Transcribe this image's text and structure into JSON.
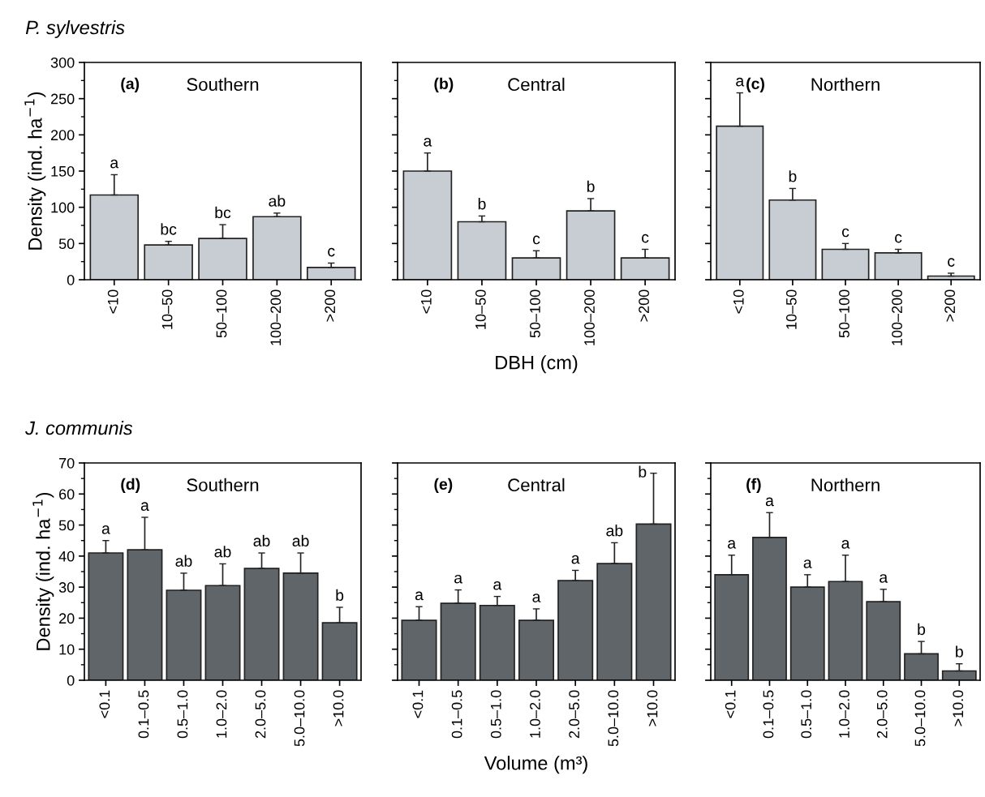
{
  "chart_data": [
    {
      "type": "bar",
      "title": "Southern",
      "ylabel": "Density (ind. ha$^{−1}$)",
      "categories": [
        "<10",
        "10–50",
        "50–100",
        "100–200",
        ">200"
      ],
      "color": "#c8ccd3",
      "values": [
        117,
        48,
        57,
        87,
        17
      ],
      "errors": [
        [
          117,
          145
        ],
        [
          48,
          53
        ],
        [
          57,
          76
        ],
        [
          87,
          92
        ],
        [
          17,
          23
        ]
      ],
      "ylim": [
        0,
        300
      ],
      "yticks": [
        0,
        50,
        100,
        150,
        200,
        250,
        300
      ],
      "annotations": [
        "(a)",
        "P. sylvestris",
        {
          "text": "a",
          "x": "<10",
          "y": 145
        },
        {
          "text": "bc",
          "x": "10–50",
          "y": 53
        },
        {
          "text": "bc",
          "x": "50–100",
          "y": 76
        },
        {
          "text": "ab",
          "x": "100–200",
          "y": 92
        },
        {
          "text": "c",
          "x": ">200",
          "y": 23
        }
      ]
    },
    {
      "type": "bar",
      "title": "Central",
      "xlabel": "DBH (cm)",
      "categories": [
        "<10",
        "10–50",
        "50–100",
        "100–200",
        ">200"
      ],
      "color": "#c8ccd3",
      "values": [
        150,
        80,
        30,
        95,
        30
      ],
      "errors": [
        [
          150,
          175
        ],
        [
          80,
          88
        ],
        [
          30,
          40
        ],
        [
          95,
          112
        ],
        [
          30,
          42
        ]
      ],
      "ylim": [
        0,
        300
      ],
      "yticks": [
        0,
        50,
        100,
        150,
        200,
        250,
        300
      ],
      "tick_labels": "x",
      "annotations": [
        "(b)",
        {
          "text": "a",
          "x": "<10",
          "y": 175
        },
        {
          "text": "b",
          "x": "10–50",
          "y": 88
        },
        {
          "text": "c",
          "x": "50–100",
          "y": 40
        },
        {
          "text": "b",
          "x": "100–200",
          "y": 112
        },
        {
          "text": "c",
          "x": ">200",
          "y": 42
        }
      ]
    },
    {
      "type": "bar",
      "title": "Northern",
      "categories": [
        "<10",
        "10–50",
        "50–100",
        "100–200",
        ">200"
      ],
      "color": "#c8ccd3",
      "values": [
        212,
        110,
        42,
        37,
        5
      ],
      "errors": [
        [
          212,
          258
        ],
        [
          110,
          126
        ],
        [
          42,
          50
        ],
        [
          37,
          42
        ],
        [
          5,
          9
        ]
      ],
      "ylim": [
        0,
        300
      ],
      "yticks": [
        0,
        50,
        100,
        150,
        200,
        250,
        300
      ],
      "tick_labels": "x",
      "annotations": [
        "(c)",
        {
          "text": "a",
          "x": "<10",
          "y": 258
        },
        {
          "text": "b",
          "x": "10–50",
          "y": 126
        },
        {
          "text": "c",
          "x": "50–100",
          "y": 50
        },
        {
          "text": "c",
          "x": "100–200",
          "y": 42
        },
        {
          "text": "c",
          "x": ">200",
          "y": 9
        }
      ]
    },
    {
      "type": "bar",
      "title": "Southern",
      "ylabel": "Density (ind. ha$^{−1}$)",
      "categories": [
        "<0.1",
        "0.1–0.5",
        "0.5–1.0",
        "1.0–2.0",
        "2.0–5.0",
        "5.0–10.0",
        ">10.0"
      ],
      "color": "#5f6569",
      "values": [
        41,
        42,
        29,
        30.5,
        36,
        34.5,
        18.5
      ],
      "errors": [
        [
          41,
          45
        ],
        [
          42,
          52.5
        ],
        [
          29,
          34.5
        ],
        [
          30.5,
          37.5
        ],
        [
          36,
          41
        ],
        [
          34.5,
          41
        ],
        [
          18.5,
          23.5
        ]
      ],
      "ylim": [
        0,
        70
      ],
      "yticks": [
        0,
        10,
        20,
        30,
        40,
        50,
        60,
        70
      ],
      "annotations": [
        "(d)",
        "J. communis",
        {
          "text": "a",
          "x": "<0.1",
          "y": 45
        },
        {
          "text": "a",
          "x": "0.1–0.5",
          "y": 52.5
        },
        {
          "text": "ab",
          "x": "0.5–1.0",
          "y": 34.5
        },
        {
          "text": "ab",
          "x": "1.0–2.0",
          "y": 37.5
        },
        {
          "text": "ab",
          "x": "2.0–5.0",
          "y": 41
        },
        {
          "text": "ab",
          "x": "5.0–10.0",
          "y": 41
        },
        {
          "text": "b",
          "x": ">10.0",
          "y": 23.5
        }
      ]
    },
    {
      "type": "bar",
      "title": "Central",
      "xlabel": "Volume (m³)",
      "categories": [
        "<0.1",
        "0.1–0.5",
        "0.5–1.0",
        "1.0–2.0",
        "2.0–5.0",
        "5.0–10.0",
        ">10.0"
      ],
      "color": "#5f6569",
      "values": [
        19.3,
        24.8,
        24.1,
        19.3,
        32.1,
        37.6,
        50.3
      ],
      "errors": [
        [
          19.3,
          23.7
        ],
        [
          24.8,
          29.1
        ],
        [
          24.1,
          27
        ],
        [
          19.3,
          23
        ],
        [
          32.1,
          35.4
        ],
        [
          37.6,
          44.3
        ],
        [
          50.3,
          66.7
        ]
      ],
      "ylim": [
        0,
        70
      ],
      "yticks": [
        0,
        10,
        20,
        30,
        40,
        50,
        60,
        70
      ],
      "tick_labels": "x",
      "annotations": [
        "(e)",
        {
          "text": "a",
          "x": "<0.1",
          "y": 23.7
        },
        {
          "text": "a",
          "x": "0.1–0.5",
          "y": 29.1
        },
        {
          "text": "a",
          "x": "0.5–1.0",
          "y": 27
        },
        {
          "text": "a",
          "x": "1.0–2.0",
          "y": 23
        },
        {
          "text": "a",
          "x": "2.0–5.0",
          "y": 35.4
        },
        {
          "text": "ab",
          "x": "5.0–10.0",
          "y": 44.3
        },
        {
          "text": "b",
          "x": ">10.0",
          "y": 66.7
        }
      ]
    },
    {
      "type": "bar",
      "title": "Northern",
      "categories": [
        "<0.1",
        "0.1–0.5",
        "0.5–1.0",
        "1.0–2.0",
        "2.0–5.0",
        "5.0–10.0",
        ">10.0"
      ],
      "color": "#5f6569",
      "values": [
        34,
        46,
        30,
        31.8,
        25.3,
        8.5,
        3
      ],
      "errors": [
        [
          34,
          40.3
        ],
        [
          46,
          54
        ],
        [
          30,
          34
        ],
        [
          31.8,
          40.3
        ],
        [
          25.3,
          29.3
        ],
        [
          8.5,
          12.5
        ],
        [
          3,
          5.3
        ]
      ],
      "ylim": [
        0,
        70
      ],
      "yticks": [
        0,
        10,
        20,
        30,
        40,
        50,
        60,
        70
      ],
      "tick_labels": "x",
      "annotations": [
        "(f)",
        {
          "text": "a",
          "x": "<0.1",
          "y": 40.3
        },
        {
          "text": "a",
          "x": "0.1–0.5",
          "y": 54
        },
        {
          "text": "a",
          "x": "0.5–1.0",
          "y": 34
        },
        {
          "text": "a",
          "x": "1.0–2.0",
          "y": 40.3
        },
        {
          "text": "a",
          "x": "2.0–5.0",
          "y": 29.3
        },
        {
          "text": "b",
          "x": "5.0–10.0",
          "y": 12.5
        },
        {
          "text": "b",
          "x": ">10.0",
          "y": 5.3
        }
      ]
    }
  ]
}
